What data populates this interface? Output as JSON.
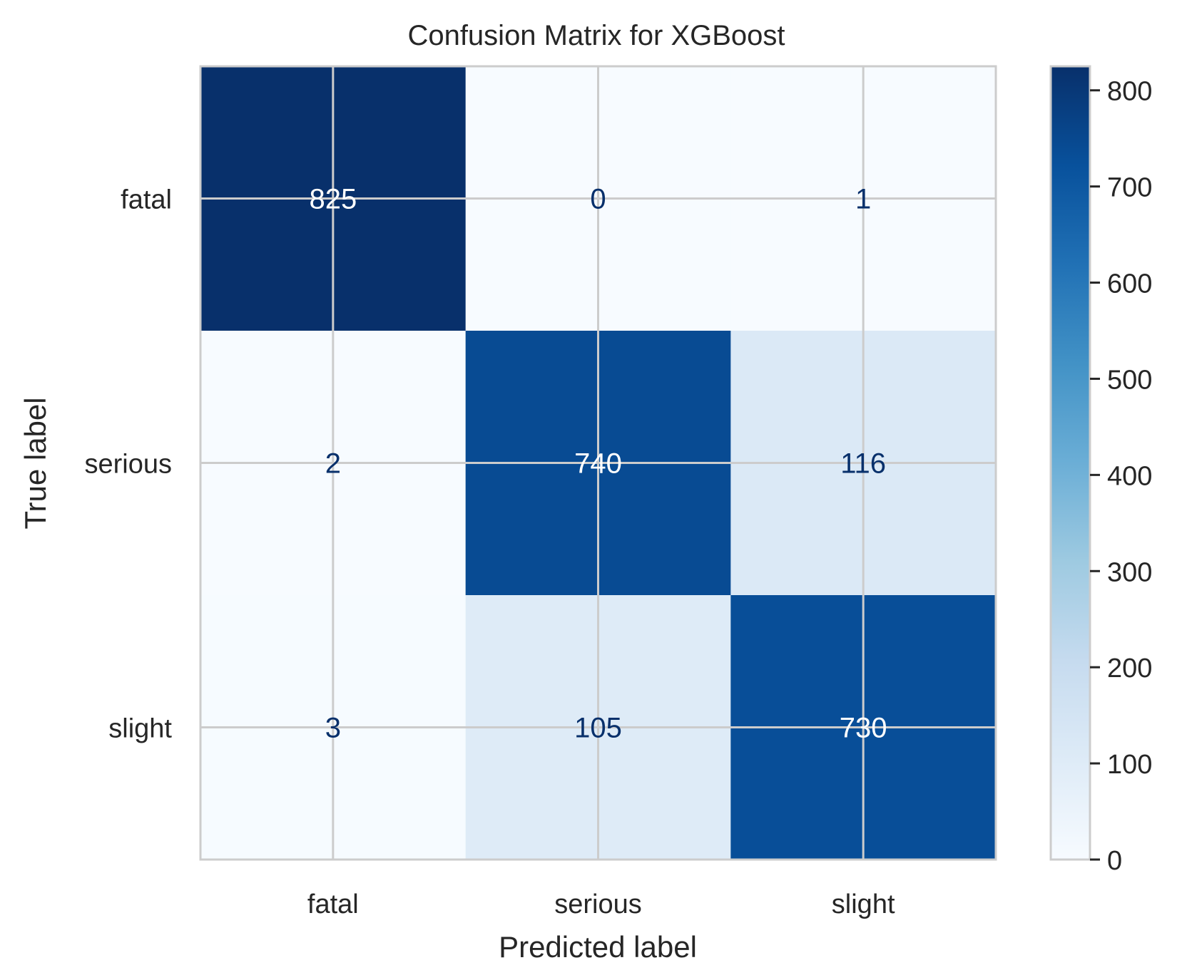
{
  "chart_data": {
    "type": "heatmap",
    "title": "Confusion Matrix for XGBoost",
    "xlabel": "Predicted label",
    "ylabel": "True label",
    "x_categories": [
      "fatal",
      "serious",
      "slight"
    ],
    "y_categories": [
      "fatal",
      "serious",
      "slight"
    ],
    "values": [
      [
        825,
        0,
        1
      ],
      [
        2,
        740,
        116
      ],
      [
        3,
        105,
        730
      ]
    ],
    "colormap": "Blues",
    "colorbar": {
      "range": [
        0,
        825
      ],
      "ticks": [
        0,
        100,
        200,
        300,
        400,
        500,
        600,
        700,
        800
      ],
      "tick_labels": [
        "0",
        "100",
        "200",
        "300",
        "400",
        "500",
        "600",
        "700",
        "800"
      ]
    },
    "grid": true,
    "text_color_dark_cells": "#ffffff",
    "text_color_light_cells": "#08306b"
  }
}
